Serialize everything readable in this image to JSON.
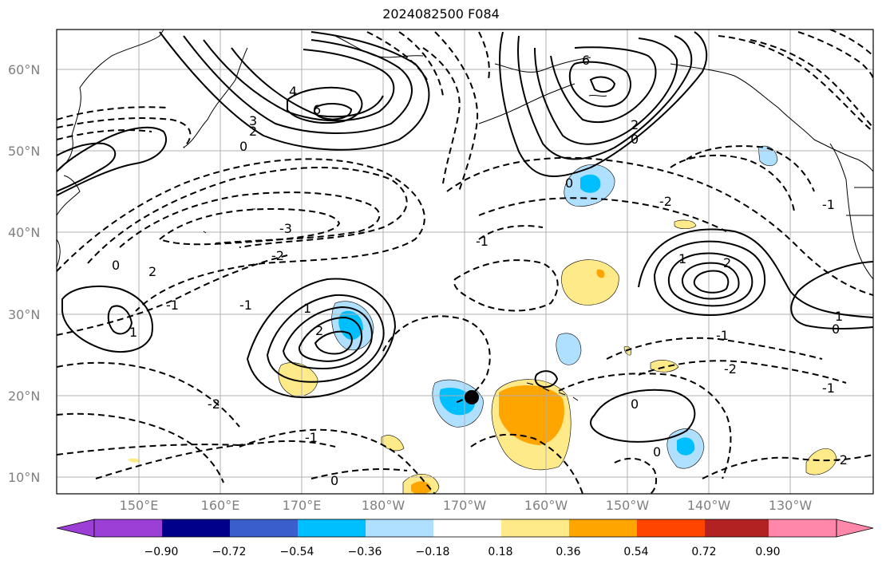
{
  "title": "2024082500 F084",
  "lat_labels": [
    "60°N",
    "50°N",
    "40°N",
    "30°N",
    "20°N",
    "10°N"
  ],
  "lon_labels": [
    "150°E",
    "160°E",
    "170°E",
    "180°W",
    "170°W",
    "160°W",
    "150°W",
    "140°W",
    "130°W"
  ],
  "colorbar": {
    "ticks": [
      "−0.90",
      "−0.72",
      "−0.54",
      "−0.36",
      "−0.18",
      "0.18",
      "0.36",
      "0.54",
      "0.72",
      "0.90"
    ],
    "colors": [
      "#9b3fd6",
      "#00008b",
      "#3a5fcd",
      "#00bfff",
      "#b0e0ff",
      "#ffffff",
      "#ffea8a",
      "#ffa500",
      "#ff4500",
      "#b22222",
      "#ff88aa"
    ]
  },
  "contour_labels": [
    "6",
    "4",
    "3",
    "2",
    "0",
    "6",
    "2",
    "0",
    "-3",
    "-2",
    "-1",
    "0",
    "1",
    "2",
    "-1",
    "2",
    "1",
    "-2",
    "-1",
    "0",
    "-2",
    "-1",
    "0",
    "-1",
    "1",
    "2",
    "1",
    "0",
    "-1",
    "-2",
    "0",
    "-1",
    "-2",
    "0"
  ]
}
